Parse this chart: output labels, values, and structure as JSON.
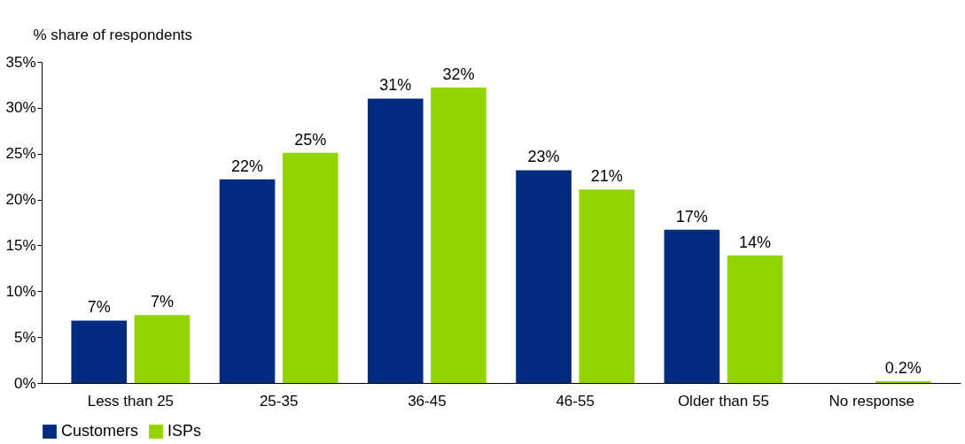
{
  "chart_data": {
    "type": "bar",
    "ylabel": "% share of respondents",
    "categories": [
      "Less than 25",
      "25-35",
      "36-45",
      "46-55",
      "Older than 55",
      "No response"
    ],
    "series": [
      {
        "name": "Customers",
        "color": "#002b7f",
        "values": [
          6.8,
          22.2,
          31.0,
          23.2,
          16.7,
          null
        ],
        "value_labels": [
          "7%",
          "22%",
          "31%",
          "23%",
          "17%",
          null
        ]
      },
      {
        "name": "ISPs",
        "color": "#92d400",
        "values": [
          7.4,
          25.1,
          32.2,
          21.1,
          13.9,
          0.2
        ],
        "value_labels": [
          "7%",
          "25%",
          "32%",
          "21%",
          "14%",
          "0.2%"
        ]
      }
    ],
    "ylim": [
      0,
      35
    ],
    "yticks": [
      {
        "value": 0,
        "label": "0%"
      },
      {
        "value": 5,
        "label": "5%"
      },
      {
        "value": 10,
        "label": "10%"
      },
      {
        "value": 15,
        "label": "15%"
      },
      {
        "value": 20,
        "label": "20%"
      },
      {
        "value": 25,
        "label": "25%"
      },
      {
        "value": 30,
        "label": "30%"
      },
      {
        "value": 35,
        "label": "35%"
      }
    ],
    "grid": false,
    "legend": "bottom"
  }
}
